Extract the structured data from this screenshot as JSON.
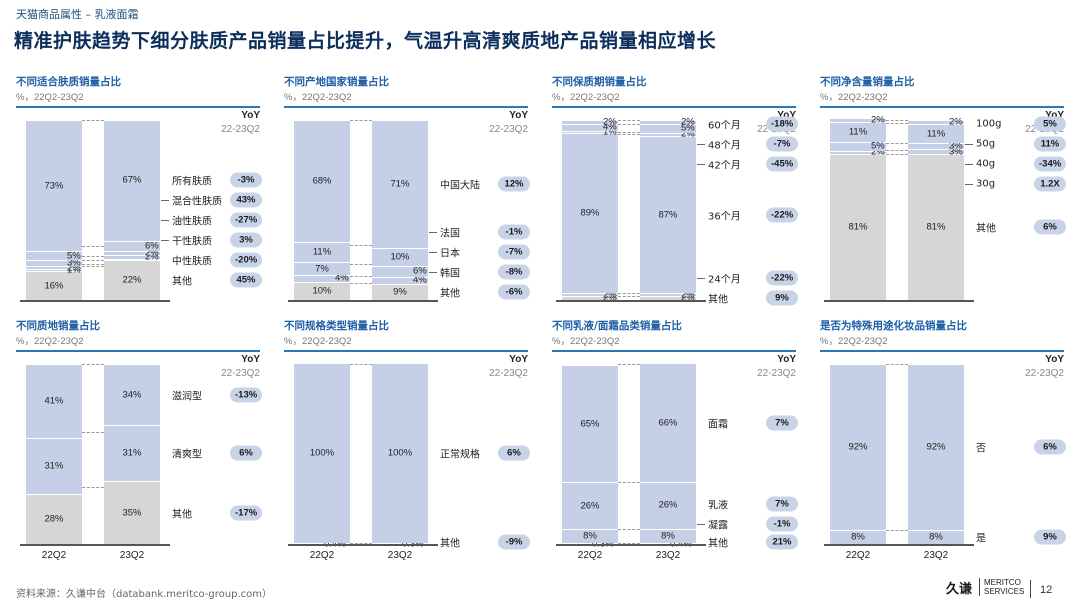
{
  "header": {
    "kicker": "天猫商品属性 – 乳液面霜",
    "title": "精准护肤趋势下细分肤质产品销量占比提升，气温升高清爽质地产品销量相应增长"
  },
  "footer": {
    "source": "资料来源：久谦中台（databank.meritco-group.com）",
    "logo_cn": "久谦",
    "logo_en_1": "MERITCO",
    "logo_en_2": "SERVICES",
    "page": "12"
  },
  "chart_data": [
    {
      "type": "bar",
      "title": "不同适合肤质销量占比",
      "subtitle": "%，22Q2-23Q2",
      "yoy_header": "YoY",
      "yoy_period": "22-23Q2",
      "categories": [
        "22Q2",
        "23Q2"
      ],
      "series": [
        {
          "name": "其他",
          "values": [
            16,
            22
          ],
          "labels": [
            "16%",
            "22%"
          ],
          "yoy": "45%",
          "color": "gray"
        },
        {
          "name": "中性肤质",
          "values": [
            1,
            1
          ],
          "labels": [
            "1%",
            ""
          ],
          "yoy": "-20%",
          "color": "blue"
        },
        {
          "name": "干性肤质",
          "values": [
            2,
            2
          ],
          "labels": [
            "2%",
            "2%"
          ],
          "yoy": "3%",
          "color": "blue"
        },
        {
          "name": "油性肤质",
          "values": [
            3,
            2
          ],
          "labels": [
            "3%",
            "2%"
          ],
          "yoy": "-27%",
          "color": "blue"
        },
        {
          "name": "混合性肤质",
          "values": [
            5,
            6
          ],
          "labels": [
            "5%",
            "6%"
          ],
          "yoy": "43%",
          "color": "blue"
        },
        {
          "name": "所有肤质",
          "values": [
            73,
            67
          ],
          "labels": [
            "73%",
            "67%"
          ],
          "yoy": "-3%",
          "color": "blue"
        }
      ],
      "ylim": [
        0,
        100
      ]
    },
    {
      "type": "bar",
      "title": "不同产地国家销量占比",
      "subtitle": "%，22Q2-23Q2",
      "yoy_header": "YoY",
      "yoy_period": "22-23Q2",
      "categories": [
        "22Q2",
        "23Q2"
      ],
      "series": [
        {
          "name": "其他",
          "values": [
            10,
            9
          ],
          "labels": [
            "10%",
            "9%"
          ],
          "yoy": "-6%",
          "color": "gray"
        },
        {
          "name": "韩国",
          "values": [
            4,
            4
          ],
          "labels": [
            "4%",
            "4%"
          ],
          "yoy": "-8%",
          "color": "blue"
        },
        {
          "name": "日本",
          "values": [
            7,
            6
          ],
          "labels": [
            "7%",
            "6%"
          ],
          "yoy": "-7%",
          "color": "blue"
        },
        {
          "name": "法国",
          "values": [
            11,
            10
          ],
          "labels": [
            "11%",
            "10%"
          ],
          "yoy": "-1%",
          "color": "blue"
        },
        {
          "name": "中国大陆",
          "values": [
            68,
            71
          ],
          "labels": [
            "68%",
            "71%"
          ],
          "yoy": "12%",
          "color": "blue"
        }
      ],
      "ylim": [
        0,
        100
      ]
    },
    {
      "type": "bar",
      "title": "不同保质期销量占比",
      "subtitle": "%，22Q2-23Q2",
      "yoy_header": "YoY",
      "yoy_period": "22-23Q2",
      "categories": [
        "22Q2",
        "23Q2"
      ],
      "series": [
        {
          "name": "其他",
          "values": [
            2,
            2
          ],
          "labels": [
            "2%",
            "2%"
          ],
          "yoy": "9%",
          "color": "gray"
        },
        {
          "name": "24个月",
          "values": [
            2,
            2
          ],
          "labels": [
            "2%",
            "2%"
          ],
          "yoy": "-22%",
          "color": "blue"
        },
        {
          "name": "36个月",
          "values": [
            89,
            87
          ],
          "labels": [
            "89%",
            "87%"
          ],
          "yoy": "-22%",
          "color": "blue"
        },
        {
          "name": "42个月",
          "values": [
            1,
            2
          ],
          "labels": [
            "1%",
            "2%"
          ],
          "yoy": "-45%",
          "color": "blue"
        },
        {
          "name": "48个月",
          "values": [
            4,
            5
          ],
          "labels": [
            "4%",
            "5%"
          ],
          "yoy": "-7%",
          "color": "blue"
        },
        {
          "name": "60个月",
          "values": [
            2,
            2
          ],
          "labels": [
            "2%",
            "2%"
          ],
          "yoy": "-18%",
          "color": "blue"
        }
      ],
      "ylim": [
        0,
        100
      ]
    },
    {
      "type": "bar",
      "title": "不同净含量销量占比",
      "subtitle": "%，22Q2-23Q2",
      "yoy_header": "YoY",
      "yoy_period": "22-23Q2",
      "categories": [
        "22Q2",
        "23Q2"
      ],
      "series": [
        {
          "name": "其他",
          "values": [
            81,
            81
          ],
          "labels": [
            "81%",
            "81%"
          ],
          "yoy": "6%",
          "color": "gray"
        },
        {
          "name": "30g",
          "values": [
            2,
            3
          ],
          "labels": [
            "2%",
            "3%"
          ],
          "yoy": "1.2X",
          "color": "blue"
        },
        {
          "name": "40g",
          "values": [
            5,
            3
          ],
          "labels": [
            "5%",
            "3%"
          ],
          "yoy": "-34%",
          "color": "blue"
        },
        {
          "name": "50g",
          "values": [
            11,
            11
          ],
          "labels": [
            "11%",
            "11%"
          ],
          "yoy": "11%",
          "color": "blue"
        },
        {
          "name": "100g",
          "values": [
            2,
            2
          ],
          "labels": [
            "2%",
            "2%"
          ],
          "yoy": "5%",
          "color": "blue"
        }
      ],
      "ylim": [
        0,
        100
      ]
    },
    {
      "type": "bar",
      "title": "不同质地销量占比",
      "subtitle": "%，22Q2-23Q2",
      "yoy_header": "YoY",
      "yoy_period": "22-23Q2",
      "categories": [
        "22Q2",
        "23Q2"
      ],
      "series": [
        {
          "name": "其他",
          "values": [
            28,
            35
          ],
          "labels": [
            "28%",
            "35%"
          ],
          "yoy": "-17%",
          "color": "gray"
        },
        {
          "name": "清爽型",
          "values": [
            31,
            31
          ],
          "labels": [
            "31%",
            "31%"
          ],
          "yoy": "6%",
          "color": "blue"
        },
        {
          "name": "滋润型",
          "values": [
            41,
            34
          ],
          "labels": [
            "41%",
            "34%"
          ],
          "yoy": "-13%",
          "color": "blue"
        }
      ],
      "ylim": [
        0,
        100
      ]
    },
    {
      "type": "bar",
      "title": "不同规格类型销量占比",
      "subtitle": "%，22Q2-23Q2",
      "yoy_header": "YoY",
      "yoy_period": "22-23Q2",
      "categories": [
        "22Q2",
        "23Q2"
      ],
      "series": [
        {
          "name": "其他",
          "values": [
            0.4,
            0.3
          ],
          "labels": [
            "0.4%",
            "0.3%"
          ],
          "yoy": "-9%",
          "color": "gray"
        },
        {
          "name": "正常规格",
          "values": [
            100,
            100
          ],
          "labels": [
            "100%",
            "100%"
          ],
          "yoy": "6%",
          "color": "blue"
        }
      ],
      "ylim": [
        0,
        100
      ]
    },
    {
      "type": "bar",
      "title": "不同乳液/面霜品类销量占比",
      "subtitle": "%，22Q2-23Q2",
      "yoy_header": "YoY",
      "yoy_period": "22-23Q2",
      "categories": [
        "22Q2",
        "23Q2"
      ],
      "series": [
        {
          "name": "其他",
          "values": [
            0.3,
            0.4
          ],
          "labels": [
            "0.3%",
            "0.4%"
          ],
          "yoy": "21%",
          "color": "gray"
        },
        {
          "name": "凝露",
          "values": [
            8,
            8
          ],
          "labels": [
            "8%",
            "8%"
          ],
          "yoy": "-1%",
          "color": "blue"
        },
        {
          "name": "乳液",
          "values": [
            26,
            26
          ],
          "labels": [
            "26%",
            "26%"
          ],
          "yoy": "7%",
          "color": "blue"
        },
        {
          "name": "面霜",
          "values": [
            65,
            66
          ],
          "labels": [
            "65%",
            "66%"
          ],
          "yoy": "7%",
          "color": "blue"
        }
      ],
      "ylim": [
        0,
        100
      ]
    },
    {
      "type": "bar",
      "title": "是否为特殊用途化妆品销量占比",
      "subtitle": "%，22Q2-23Q2",
      "yoy_header": "YoY",
      "yoy_period": "22-23Q2",
      "categories": [
        "22Q2",
        "23Q2"
      ],
      "series": [
        {
          "name": "是",
          "values": [
            8,
            8
          ],
          "labels": [
            "8%",
            "8%"
          ],
          "yoy": "9%",
          "color": "blue"
        },
        {
          "name": "否",
          "values": [
            92,
            92
          ],
          "labels": [
            "92%",
            "92%"
          ],
          "yoy": "6%",
          "color": "blue"
        }
      ],
      "ylim": [
        0,
        100
      ]
    }
  ]
}
